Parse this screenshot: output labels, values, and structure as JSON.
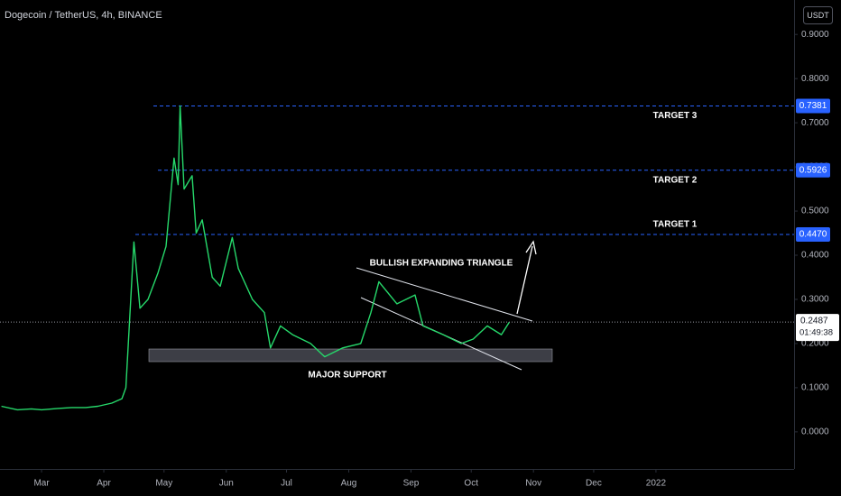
{
  "chart_data": {
    "type": "line",
    "title": "Dogecoin / TetherUS, 4h, BINANCE",
    "currency": "USDT",
    "x": [
      -20,
      -12,
      -5,
      0,
      8,
      15,
      22,
      28,
      35,
      40,
      42,
      46,
      49,
      53,
      58,
      62,
      66,
      68,
      69,
      71,
      75,
      77,
      80,
      85,
      89,
      95,
      98,
      105,
      111,
      114,
      119,
      125,
      134,
      141,
      150,
      159,
      164,
      168,
      177,
      186,
      190,
      200,
      209,
      215,
      222,
      229,
      233
    ],
    "series": [
      {
        "name": "Dogecoin / TetherUS",
        "color": "#26d96b",
        "values": [
          0.058,
          0.05,
          0.052,
          0.05,
          0.053,
          0.055,
          0.055,
          0.058,
          0.065,
          0.075,
          0.1,
          0.43,
          0.28,
          0.3,
          0.36,
          0.42,
          0.62,
          0.56,
          0.738,
          0.55,
          0.58,
          0.45,
          0.48,
          0.35,
          0.33,
          0.44,
          0.37,
          0.3,
          0.27,
          0.19,
          0.24,
          0.22,
          0.2,
          0.17,
          0.19,
          0.2,
          0.27,
          0.34,
          0.29,
          0.31,
          0.24,
          0.22,
          0.2,
          0.21,
          0.24,
          0.22,
          0.2487
        ]
      }
    ],
    "xlim": [
      -20.7,
      374.8
    ],
    "xticks": [
      {
        "value": 0,
        "label": "Mar"
      },
      {
        "value": 31,
        "label": "Apr"
      },
      {
        "value": 61,
        "label": "May"
      },
      {
        "value": 92,
        "label": "Jun"
      },
      {
        "value": 122,
        "label": "Jul"
      },
      {
        "value": 153,
        "label": "Aug"
      },
      {
        "value": 184,
        "label": "Sep"
      },
      {
        "value": 214,
        "label": "Oct"
      },
      {
        "value": 245,
        "label": "Nov"
      },
      {
        "value": 275,
        "label": "Dec"
      },
      {
        "value": 306,
        "label": "2022"
      }
    ],
    "ylim": [
      -0.084,
      0.978
    ],
    "yticks": [
      {
        "value": 0,
        "label": "0.0000"
      },
      {
        "value": 0.1,
        "label": "0.1000"
      },
      {
        "value": 0.2,
        "label": "0.2000"
      },
      {
        "value": 0.3,
        "label": "0.3000"
      },
      {
        "value": 0.4,
        "label": "0.4000"
      },
      {
        "value": 0.5,
        "label": "0.5000"
      },
      {
        "value": 0.6,
        "label": "0.6000"
      },
      {
        "value": 0.7,
        "label": "0.7000"
      },
      {
        "value": 0.8,
        "label": "0.8000"
      },
      {
        "value": 0.9,
        "label": "0.9000"
      }
    ],
    "levels": {
      "names": [
        "TARGET 3",
        "TARGET 2",
        "TARGET 1"
      ],
      "values": [
        0.7381,
        0.5926,
        0.447
      ],
      "value_labels": [
        "0.7381",
        "0.5926",
        "0.4470"
      ],
      "color": "#2962ff"
    },
    "last_price": 0.2487,
    "countdown": "01:49:38",
    "annotations": [
      "BULLISH EXPANDING TRIANGLE",
      "MAJOR SUPPORT"
    ]
  }
}
